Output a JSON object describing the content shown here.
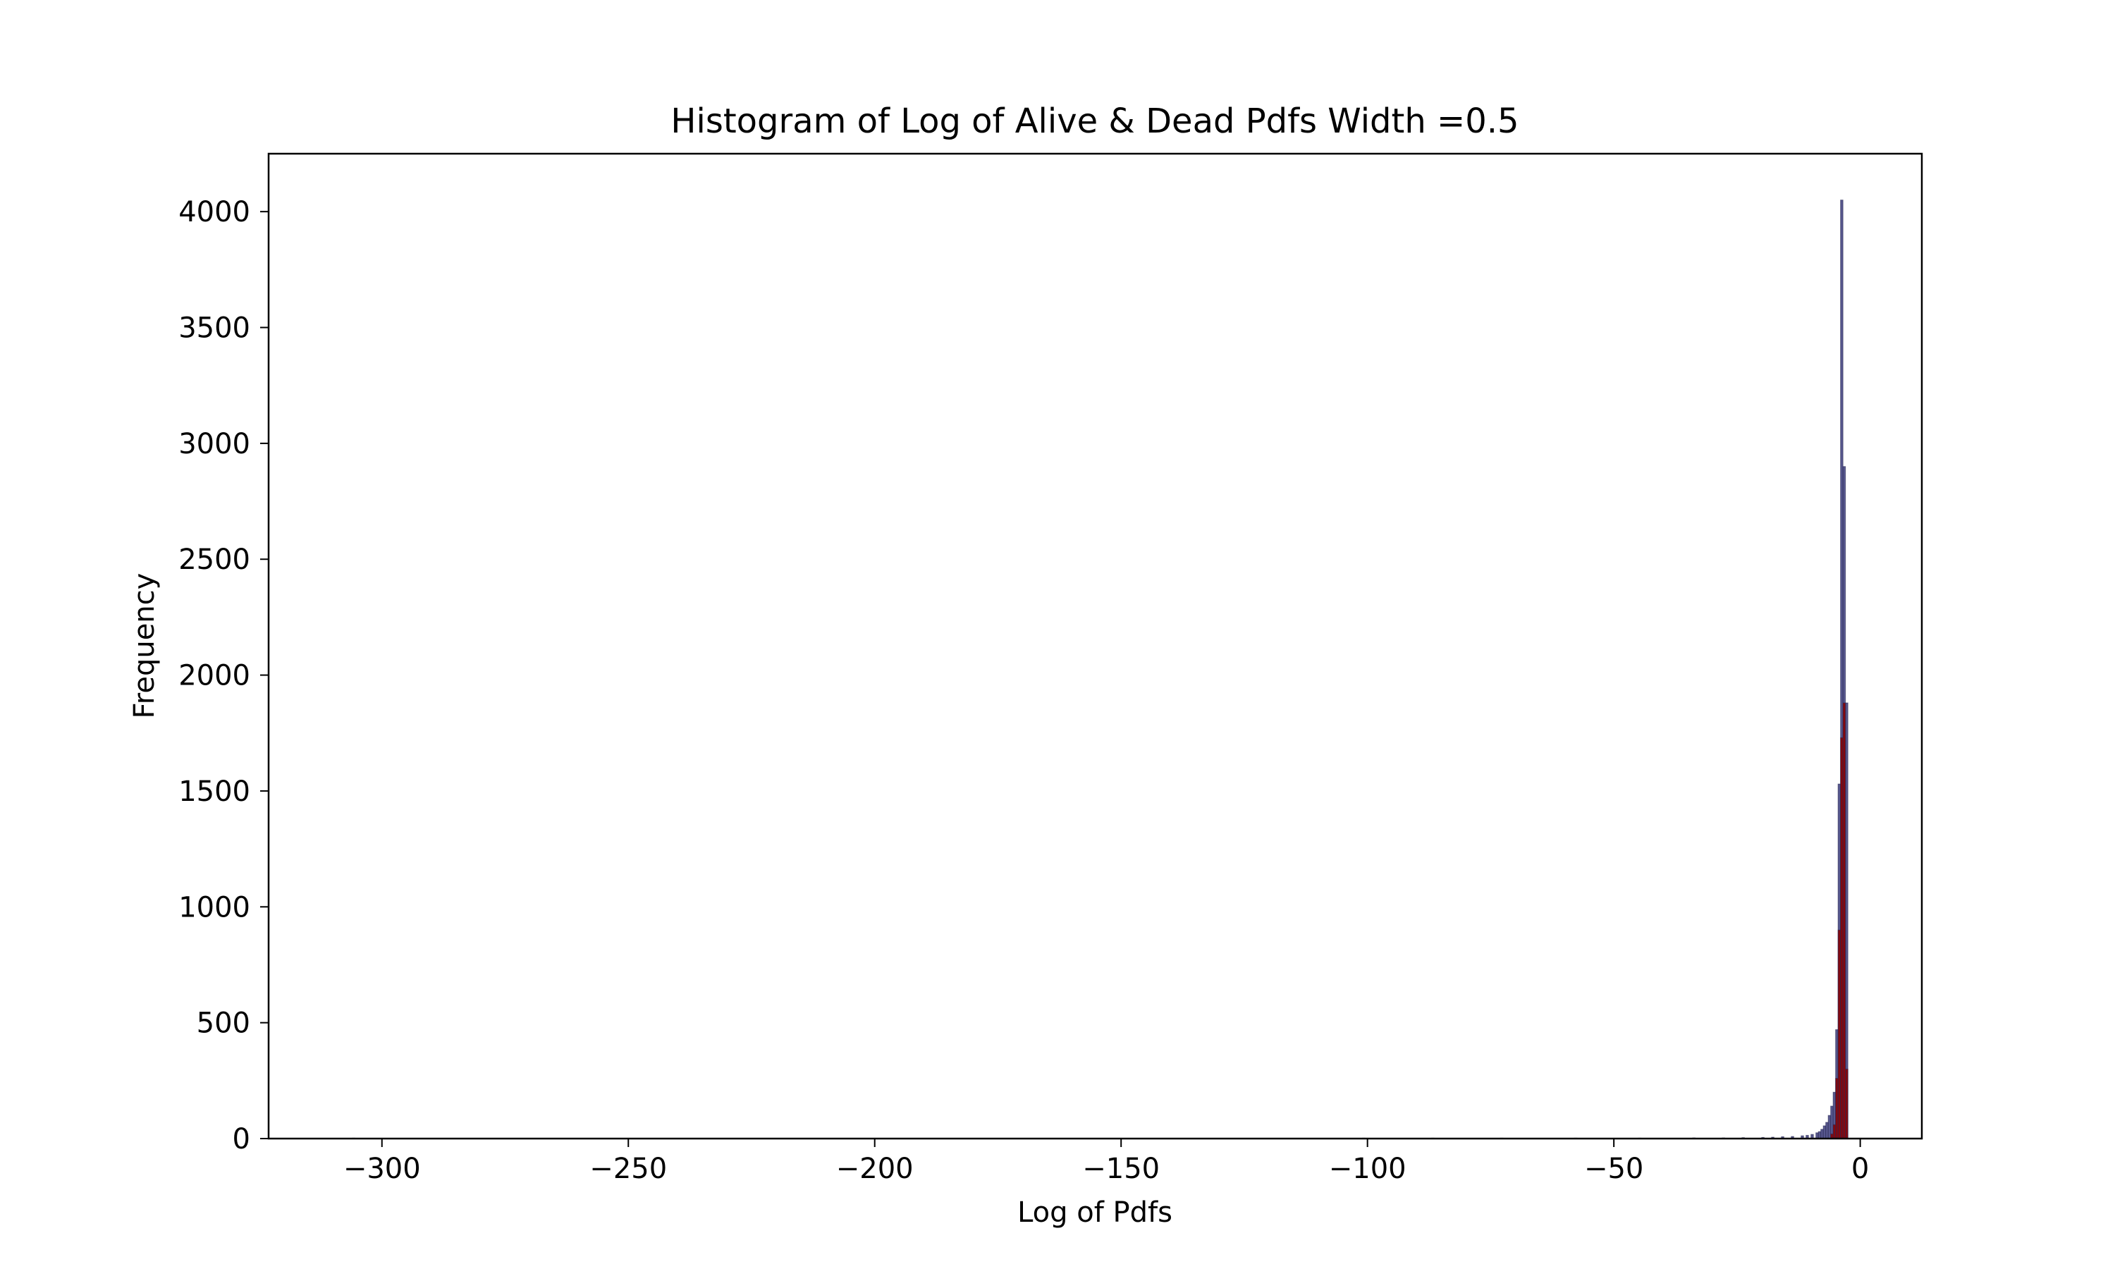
{
  "chart_data": {
    "type": "bar",
    "title": "Histogram of Log of Alive & Dead Pdfs Width =0.5",
    "xlabel": "Log of Pdfs",
    "ylabel": "Frequency",
    "xlim": [
      -323,
      12.5
    ],
    "ylim": [
      0,
      4250
    ],
    "xticks": [
      -300,
      -250,
      -200,
      -150,
      -100,
      -50,
      0
    ],
    "xtick_labels": [
      "−300",
      "−250",
      "−200",
      "−150",
      "−100",
      "−50",
      "0"
    ],
    "yticks": [
      0,
      500,
      1000,
      1500,
      2000,
      2500,
      3000,
      3500,
      4000
    ],
    "ytick_labels": [
      "0",
      "500",
      "1000",
      "1500",
      "2000",
      "2500",
      "3000",
      "3500",
      "4000"
    ],
    "bin_width": 0.5,
    "grid": false,
    "legend": "none",
    "series": [
      {
        "color": "#3b3b7a",
        "bins": [
          [
            -306,
            2
          ],
          [
            -101,
            2
          ],
          [
            -87,
            2
          ],
          [
            -73,
            2
          ],
          [
            -58,
            2
          ],
          [
            -45,
            2
          ],
          [
            -34,
            3
          ],
          [
            -28,
            3
          ],
          [
            -24,
            4
          ],
          [
            -20,
            5
          ],
          [
            -18,
            6
          ],
          [
            -16,
            8
          ],
          [
            -14,
            9
          ],
          [
            -12,
            12
          ],
          [
            -11,
            14
          ],
          [
            -10,
            18
          ],
          [
            -9,
            25
          ],
          [
            -8.5,
            30
          ],
          [
            -8,
            40
          ],
          [
            -7.5,
            55
          ],
          [
            -7,
            70
          ],
          [
            -6.5,
            100
          ],
          [
            -6,
            140
          ],
          [
            -5.5,
            200
          ],
          [
            -5,
            470
          ],
          [
            -4.5,
            1530
          ],
          [
            -4,
            4050
          ],
          [
            -3.5,
            2900
          ],
          [
            -3,
            1880
          ]
        ]
      },
      {
        "color": "#8b0000",
        "bins": [
          [
            -6,
            20
          ],
          [
            -5.5,
            60
          ],
          [
            -5,
            260
          ],
          [
            -4.5,
            900
          ],
          [
            -4,
            1730
          ],
          [
            -3.5,
            1880
          ],
          [
            -3,
            300
          ]
        ]
      }
    ]
  }
}
